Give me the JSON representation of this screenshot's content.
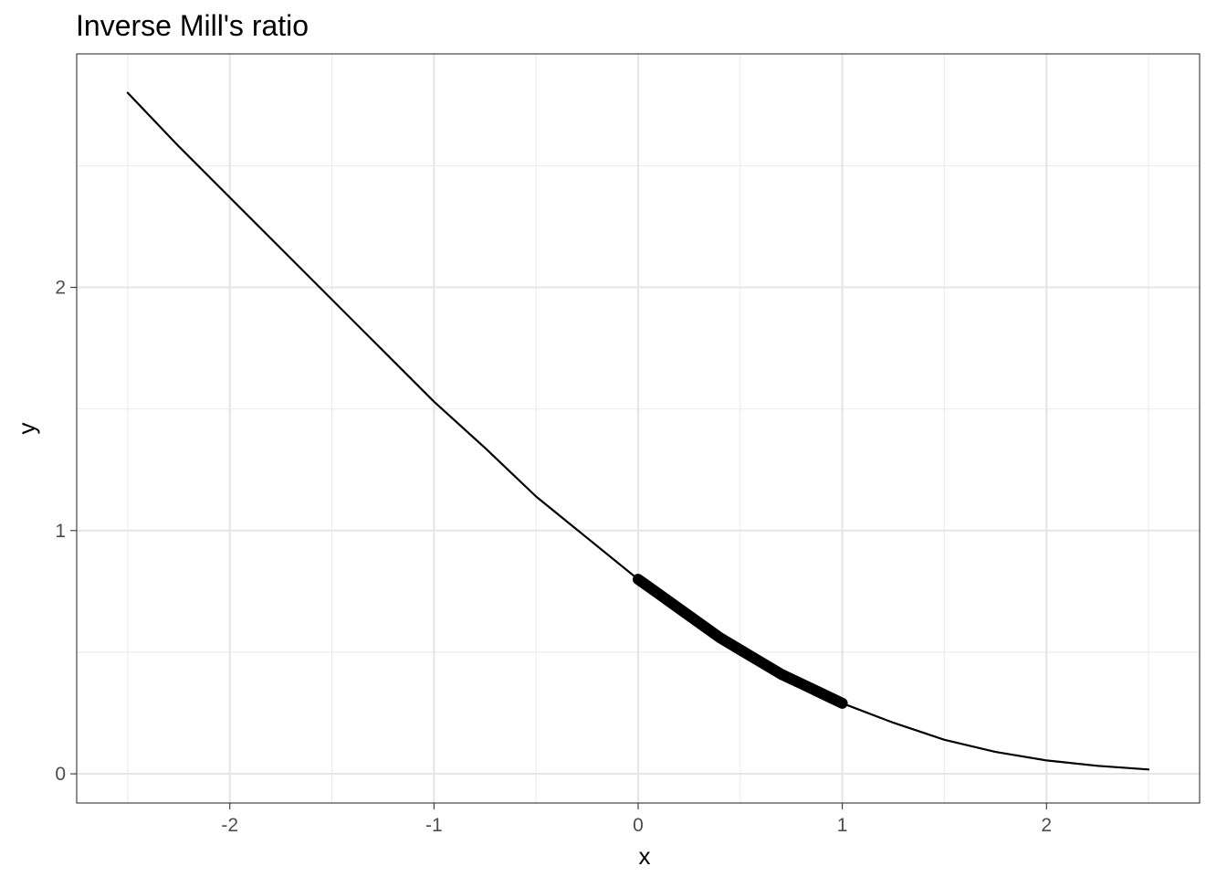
{
  "chart_data": {
    "type": "line",
    "title": "Inverse Mill's ratio",
    "xlabel": "x",
    "ylabel": "y",
    "xlim": [
      -2.75,
      2.75
    ],
    "ylim": [
      -0.12,
      2.96
    ],
    "x_ticks": [
      -2,
      -1,
      0,
      1,
      2
    ],
    "x_tick_labels": [
      "-2",
      "-1",
      "0",
      "1",
      "2"
    ],
    "y_ticks": [
      0,
      1,
      2
    ],
    "y_tick_labels": [
      "0",
      "1",
      "2"
    ],
    "grid": true,
    "legend": "none",
    "series": [
      {
        "style": "thin",
        "x": [
          -2.5,
          -2.25,
          -2.0,
          -1.75,
          -1.5,
          -1.25,
          -1.0,
          -0.75,
          -0.5,
          -0.25,
          0.0,
          0.25,
          0.5,
          0.75,
          1.0,
          1.25,
          1.5,
          1.75,
          2.0,
          2.25,
          2.5
        ],
        "y": [
          2.8,
          2.58,
          2.37,
          2.16,
          1.95,
          1.74,
          1.53,
          1.34,
          1.14,
          0.97,
          0.8,
          0.65,
          0.51,
          0.39,
          0.29,
          0.21,
          0.14,
          0.09,
          0.055,
          0.033,
          0.018
        ]
      },
      {
        "style": "thick",
        "x": [
          0.0,
          0.1,
          0.2,
          0.3,
          0.4,
          0.5,
          0.6,
          0.7,
          0.8,
          0.9,
          1.0
        ],
        "y": [
          0.8,
          0.74,
          0.68,
          0.62,
          0.56,
          0.51,
          0.46,
          0.41,
          0.37,
          0.33,
          0.29
        ]
      }
    ]
  }
}
